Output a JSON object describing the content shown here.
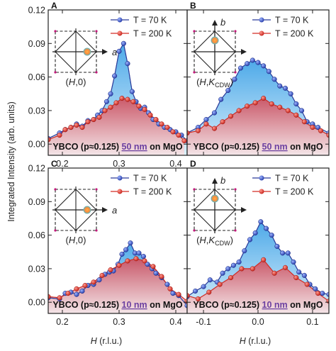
{
  "figure": {
    "y_label": "Integrated Intensity (arb. units)",
    "x_label_left": "H (r.l.u.)",
    "x_label_right": "H (r.l.u.)",
    "colors": {
      "t70_line": "#2b3a9a",
      "t70_marker": "#3457c8",
      "t70_fill": "#7fc4ef",
      "t200_line": "#d42c24",
      "t200_marker": "#e0342c",
      "t200_fill": "#d9606c",
      "sample_underline": "#6b3fa0"
    }
  },
  "chart_data": [
    {
      "panel": "A",
      "type": "area",
      "sample": {
        "prefix": "YBCO (p≈0.125) ",
        "thickness": "50 nm",
        "suffix": " on MgO"
      },
      "inset": {
        "axis_label": "a",
        "index_label": "(H,0)",
        "cdw_sub": ""
      },
      "xlim": [
        0.175,
        0.42
      ],
      "ylim": [
        -0.01,
        0.12
      ],
      "yticks": [
        0.0,
        0.03,
        0.06,
        0.09,
        0.12
      ],
      "ytick_labels": [
        "0.00",
        "0.03",
        "0.06",
        "0.09",
        "0.12"
      ],
      "xticks": [
        0.2,
        0.3,
        0.4
      ],
      "xtick_labels": [
        "0.2",
        "0.3",
        "0.4"
      ],
      "legend": [
        "T = 70 K",
        "T = 200 K"
      ],
      "series": [
        {
          "name": "T = 70 K",
          "x": [
            0.175,
            0.195,
            0.205,
            0.215,
            0.225,
            0.235,
            0.245,
            0.255,
            0.262,
            0.27,
            0.278,
            0.285,
            0.292,
            0.3,
            0.308,
            0.315,
            0.323,
            0.33,
            0.338,
            0.345,
            0.352,
            0.36,
            0.37,
            0.38,
            0.39,
            0.4,
            0.41,
            0.42
          ],
          "y": [
            0.005,
            0.01,
            0.013,
            0.015,
            0.018,
            0.016,
            0.021,
            0.022,
            0.026,
            0.03,
            0.038,
            0.045,
            0.061,
            0.083,
            0.09,
            0.072,
            0.047,
            0.038,
            0.032,
            0.033,
            0.028,
            0.022,
            0.018,
            0.015,
            0.013,
            0.011,
            0.008,
            0.003
          ]
        },
        {
          "name": "T = 200 K",
          "x": [
            0.175,
            0.195,
            0.205,
            0.215,
            0.225,
            0.235,
            0.245,
            0.255,
            0.265,
            0.275,
            0.285,
            0.295,
            0.305,
            0.315,
            0.325,
            0.335,
            0.345,
            0.355,
            0.365,
            0.375,
            0.385,
            0.395,
            0.405,
            0.415
          ],
          "y": [
            0.004,
            0.008,
            0.013,
            0.015,
            0.017,
            0.015,
            0.02,
            0.022,
            0.024,
            0.03,
            0.033,
            0.037,
            0.041,
            0.04,
            0.038,
            0.034,
            0.031,
            0.026,
            0.022,
            0.018,
            0.015,
            0.011,
            0.008,
            0.003
          ]
        }
      ]
    },
    {
      "panel": "B",
      "type": "area",
      "sample": {
        "prefix": "YBCO (p≈0.125) ",
        "thickness": "50 nm",
        "suffix": " on MgO"
      },
      "inset": {
        "axis_label": "b",
        "index_label": "(H,K",
        "cdw_sub": "CDW"
      },
      "xlim": [
        -0.13,
        0.13
      ],
      "ylim": [
        -0.01,
        0.12
      ],
      "yticks": [
        0.0,
        0.03,
        0.06,
        0.09,
        0.12
      ],
      "ytick_labels": [
        "",
        "",
        "",
        "",
        ""
      ],
      "xticks": [
        -0.1,
        0.0,
        0.1
      ],
      "xtick_labels": [
        "",
        "",
        ""
      ],
      "legend": [
        "T = 70 K",
        "T = 200 K"
      ],
      "series": [
        {
          "name": "T = 70 K",
          "x": [
            -0.13,
            -0.11,
            -0.095,
            -0.08,
            -0.068,
            -0.055,
            -0.043,
            -0.032,
            -0.02,
            -0.01,
            0.0,
            0.01,
            0.02,
            0.03,
            0.04,
            0.05,
            0.06,
            0.07,
            0.08,
            0.09,
            0.1,
            0.11,
            0.13
          ],
          "y": [
            0.01,
            0.015,
            0.022,
            0.028,
            0.04,
            0.048,
            0.058,
            0.068,
            0.072,
            0.075,
            0.073,
            0.07,
            0.065,
            0.058,
            0.052,
            0.05,
            0.045,
            0.036,
            0.03,
            0.02,
            0.018,
            0.015,
            0.01
          ]
        },
        {
          "name": "T = 200 K",
          "x": [
            -0.13,
            -0.11,
            -0.095,
            -0.08,
            -0.065,
            -0.05,
            -0.035,
            -0.02,
            -0.005,
            0.01,
            0.025,
            0.04,
            0.055,
            0.07,
            0.085,
            0.1,
            0.115,
            0.13
          ],
          "y": [
            0.01,
            0.012,
            0.018,
            0.014,
            0.02,
            0.025,
            0.03,
            0.034,
            0.037,
            0.041,
            0.036,
            0.033,
            0.03,
            0.026,
            0.02,
            0.015,
            0.012,
            0.008
          ]
        }
      ]
    },
    {
      "panel": "C",
      "type": "area",
      "sample": {
        "prefix": "YBCO (p≈0.125) ",
        "thickness": "10 nm",
        "suffix": " on MgO"
      },
      "inset": {
        "axis_label": "a",
        "index_label": "(H,0)",
        "cdw_sub": ""
      },
      "xlim": [
        0.175,
        0.42
      ],
      "ylim": [
        -0.01,
        0.12
      ],
      "yticks": [
        0.0,
        0.03,
        0.06,
        0.09,
        0.12
      ],
      "ytick_labels": [
        "0.00",
        "0.03",
        "0.06",
        "0.09",
        "0.12"
      ],
      "xticks": [
        0.2,
        0.3,
        0.4
      ],
      "xtick_labels": [
        "0.2",
        "0.3",
        "0.4"
      ],
      "legend": [
        "T = 70 K",
        "T = 200 K"
      ],
      "series": [
        {
          "name": "T = 70 K",
          "x": [
            0.175,
            0.195,
            0.205,
            0.215,
            0.225,
            0.235,
            0.245,
            0.255,
            0.265,
            0.275,
            0.283,
            0.29,
            0.298,
            0.305,
            0.312,
            0.32,
            0.328,
            0.335,
            0.343,
            0.35,
            0.358,
            0.365,
            0.375,
            0.385,
            0.395,
            0.405,
            0.42
          ],
          "y": [
            0.004,
            0.003,
            0.008,
            0.009,
            0.007,
            0.01,
            0.015,
            0.016,
            0.02,
            0.025,
            0.027,
            0.028,
            0.034,
            0.043,
            0.047,
            0.053,
            0.044,
            0.044,
            0.041,
            0.034,
            0.03,
            0.026,
            0.022,
            0.016,
            0.008,
            0.006,
            -0.003
          ]
        },
        {
          "name": "T = 200 K",
          "x": [
            0.175,
            0.195,
            0.21,
            0.225,
            0.24,
            0.255,
            0.27,
            0.285,
            0.3,
            0.315,
            0.33,
            0.345,
            0.36,
            0.375,
            0.39,
            0.405,
            0.42
          ],
          "y": [
            0.005,
            0.004,
            0.008,
            0.012,
            0.015,
            0.018,
            0.024,
            0.029,
            0.033,
            0.037,
            0.039,
            0.037,
            0.032,
            0.023,
            0.012,
            0.007,
            0.001
          ]
        }
      ]
    },
    {
      "panel": "D",
      "type": "area",
      "sample": {
        "prefix": "YBCO (p≈0.125) ",
        "thickness": "10 nm",
        "suffix": " on MgO"
      },
      "inset": {
        "axis_label": "b",
        "index_label": "(H,K",
        "cdw_sub": "CDW"
      },
      "xlim": [
        -0.13,
        0.13
      ],
      "ylim": [
        -0.01,
        0.12
      ],
      "yticks": [
        0.0,
        0.03,
        0.06,
        0.09,
        0.12
      ],
      "ytick_labels": [
        "",
        "",
        "",
        "",
        ""
      ],
      "xticks": [
        -0.1,
        0.0,
        0.1
      ],
      "xtick_labels": [
        "-0.1",
        "0.0",
        "0.1"
      ],
      "legend": [
        "T = 70 K",
        "T = 200 K"
      ],
      "series": [
        {
          "name": "T = 70 K",
          "x": [
            -0.13,
            -0.115,
            -0.1,
            -0.088,
            -0.075,
            -0.065,
            -0.055,
            -0.045,
            -0.035,
            -0.025,
            -0.015,
            -0.005,
            0.005,
            0.015,
            0.025,
            0.035,
            0.045,
            0.055,
            0.065,
            0.075,
            0.085,
            0.095,
            0.105,
            0.118,
            0.13
          ],
          "y": [
            0.005,
            0.01,
            0.014,
            0.02,
            0.018,
            0.026,
            0.03,
            0.033,
            0.036,
            0.046,
            0.056,
            0.062,
            0.072,
            0.066,
            0.06,
            0.05,
            0.044,
            0.044,
            0.036,
            0.027,
            0.024,
            0.016,
            0.012,
            0.008,
            0.007
          ]
        },
        {
          "name": "T = 200 K",
          "x": [
            -0.13,
            -0.11,
            -0.09,
            -0.07,
            -0.05,
            -0.03,
            -0.01,
            0.01,
            0.03,
            0.05,
            0.07,
            0.09,
            0.11,
            0.13
          ],
          "y": [
            0.006,
            0.003,
            0.009,
            0.016,
            0.022,
            0.03,
            0.03,
            0.038,
            0.026,
            0.031,
            0.022,
            0.016,
            0.008,
            0.001
          ]
        }
      ]
    }
  ]
}
